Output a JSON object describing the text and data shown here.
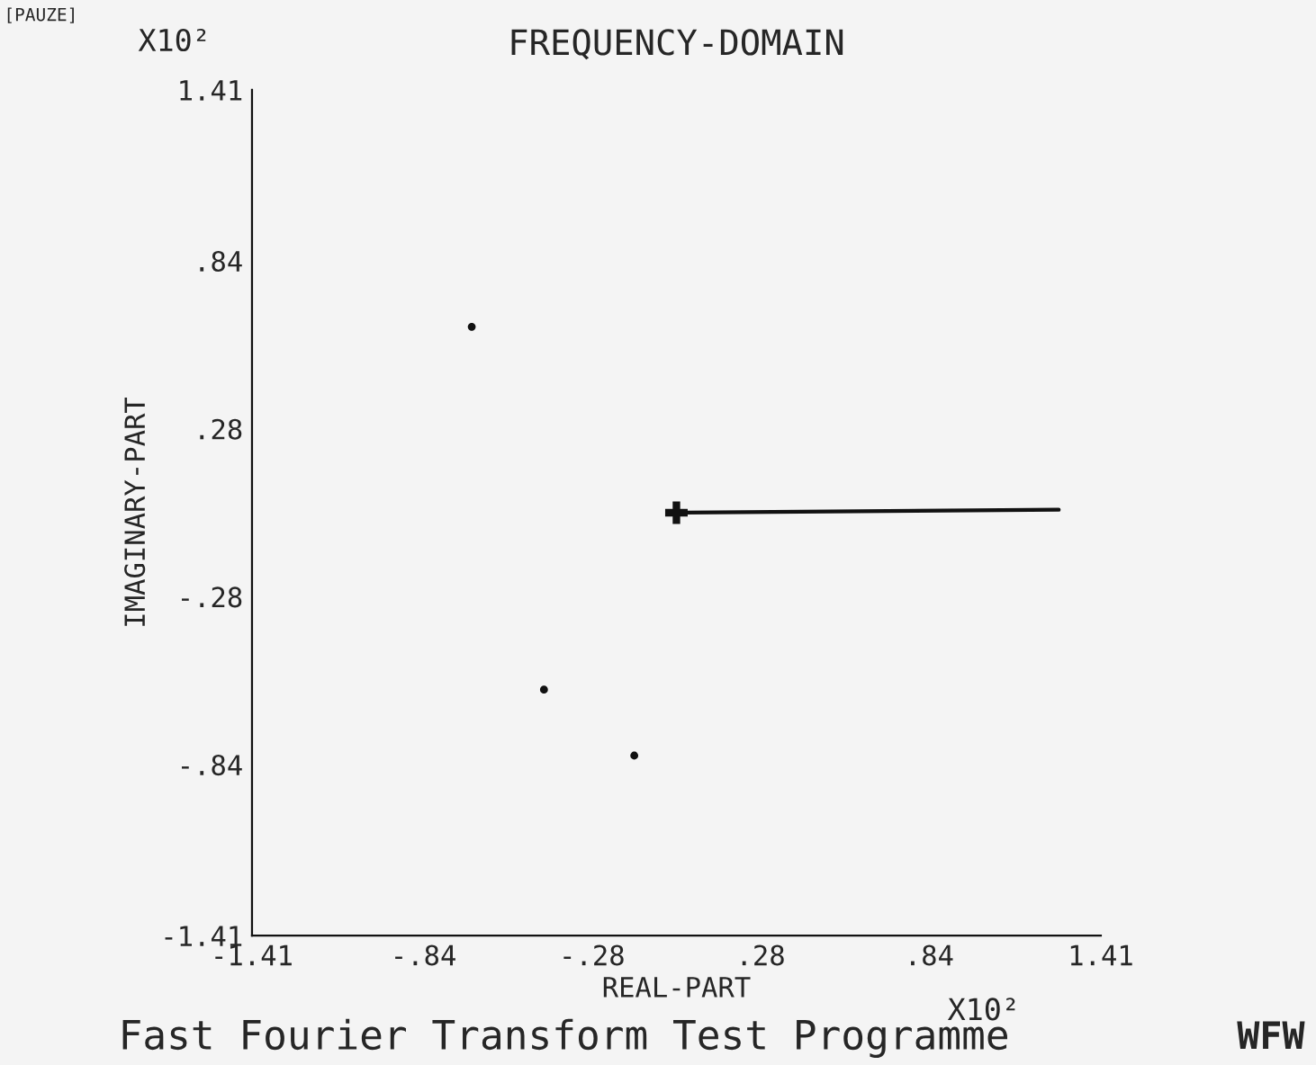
{
  "chart_data": {
    "type": "scatter",
    "title": "FREQUENCY-DOMAIN",
    "xlabel": "REAL-PART",
    "ylabel": "IMAGINARY-PART",
    "annotations": [
      "[PAUZE]",
      "X10²",
      "X10²",
      "Fast Fourier Transform Test Programme",
      "WFW"
    ],
    "series": [
      {
        "color": "#111111",
        "marker": "circle",
        "x": [
          -0.68,
          -0.44,
          -0.14
        ],
        "values": [
          0.62,
          -0.59,
          -0.81
        ]
      },
      {
        "color": "#111111",
        "marker": "cross",
        "x": [
          0.0
        ],
        "values": [
          0.0
        ]
      },
      {
        "type": "line",
        "color": "#111111",
        "marker": "none",
        "line_style": "solid",
        "x": [
          0.0,
          1.27
        ],
        "values": [
          0.0,
          0.01
        ]
      }
    ],
    "xlim": [
      -1.41,
      1.41
    ],
    "ylim": [
      -1.41,
      1.41
    ],
    "xticks": [
      {
        "value": -1.41,
        "label": "-1.41"
      },
      {
        "value": -0.84,
        "label": "-.84"
      },
      {
        "value": -0.28,
        "label": "-.28"
      },
      {
        "value": 0.28,
        "label": ".28"
      },
      {
        "value": 0.84,
        "label": ".84"
      },
      {
        "value": 1.41,
        "label": "1.41"
      }
    ],
    "yticks": [
      {
        "value": -1.41,
        "label": "-1.41"
      },
      {
        "value": -0.84,
        "label": "-.84"
      },
      {
        "value": -0.28,
        "label": "-.28"
      },
      {
        "value": 0.28,
        "label": ".28"
      },
      {
        "value": 0.84,
        "label": ".84"
      },
      {
        "value": 1.41,
        "label": "1.41"
      }
    ],
    "grid": false,
    "legend": false
  }
}
